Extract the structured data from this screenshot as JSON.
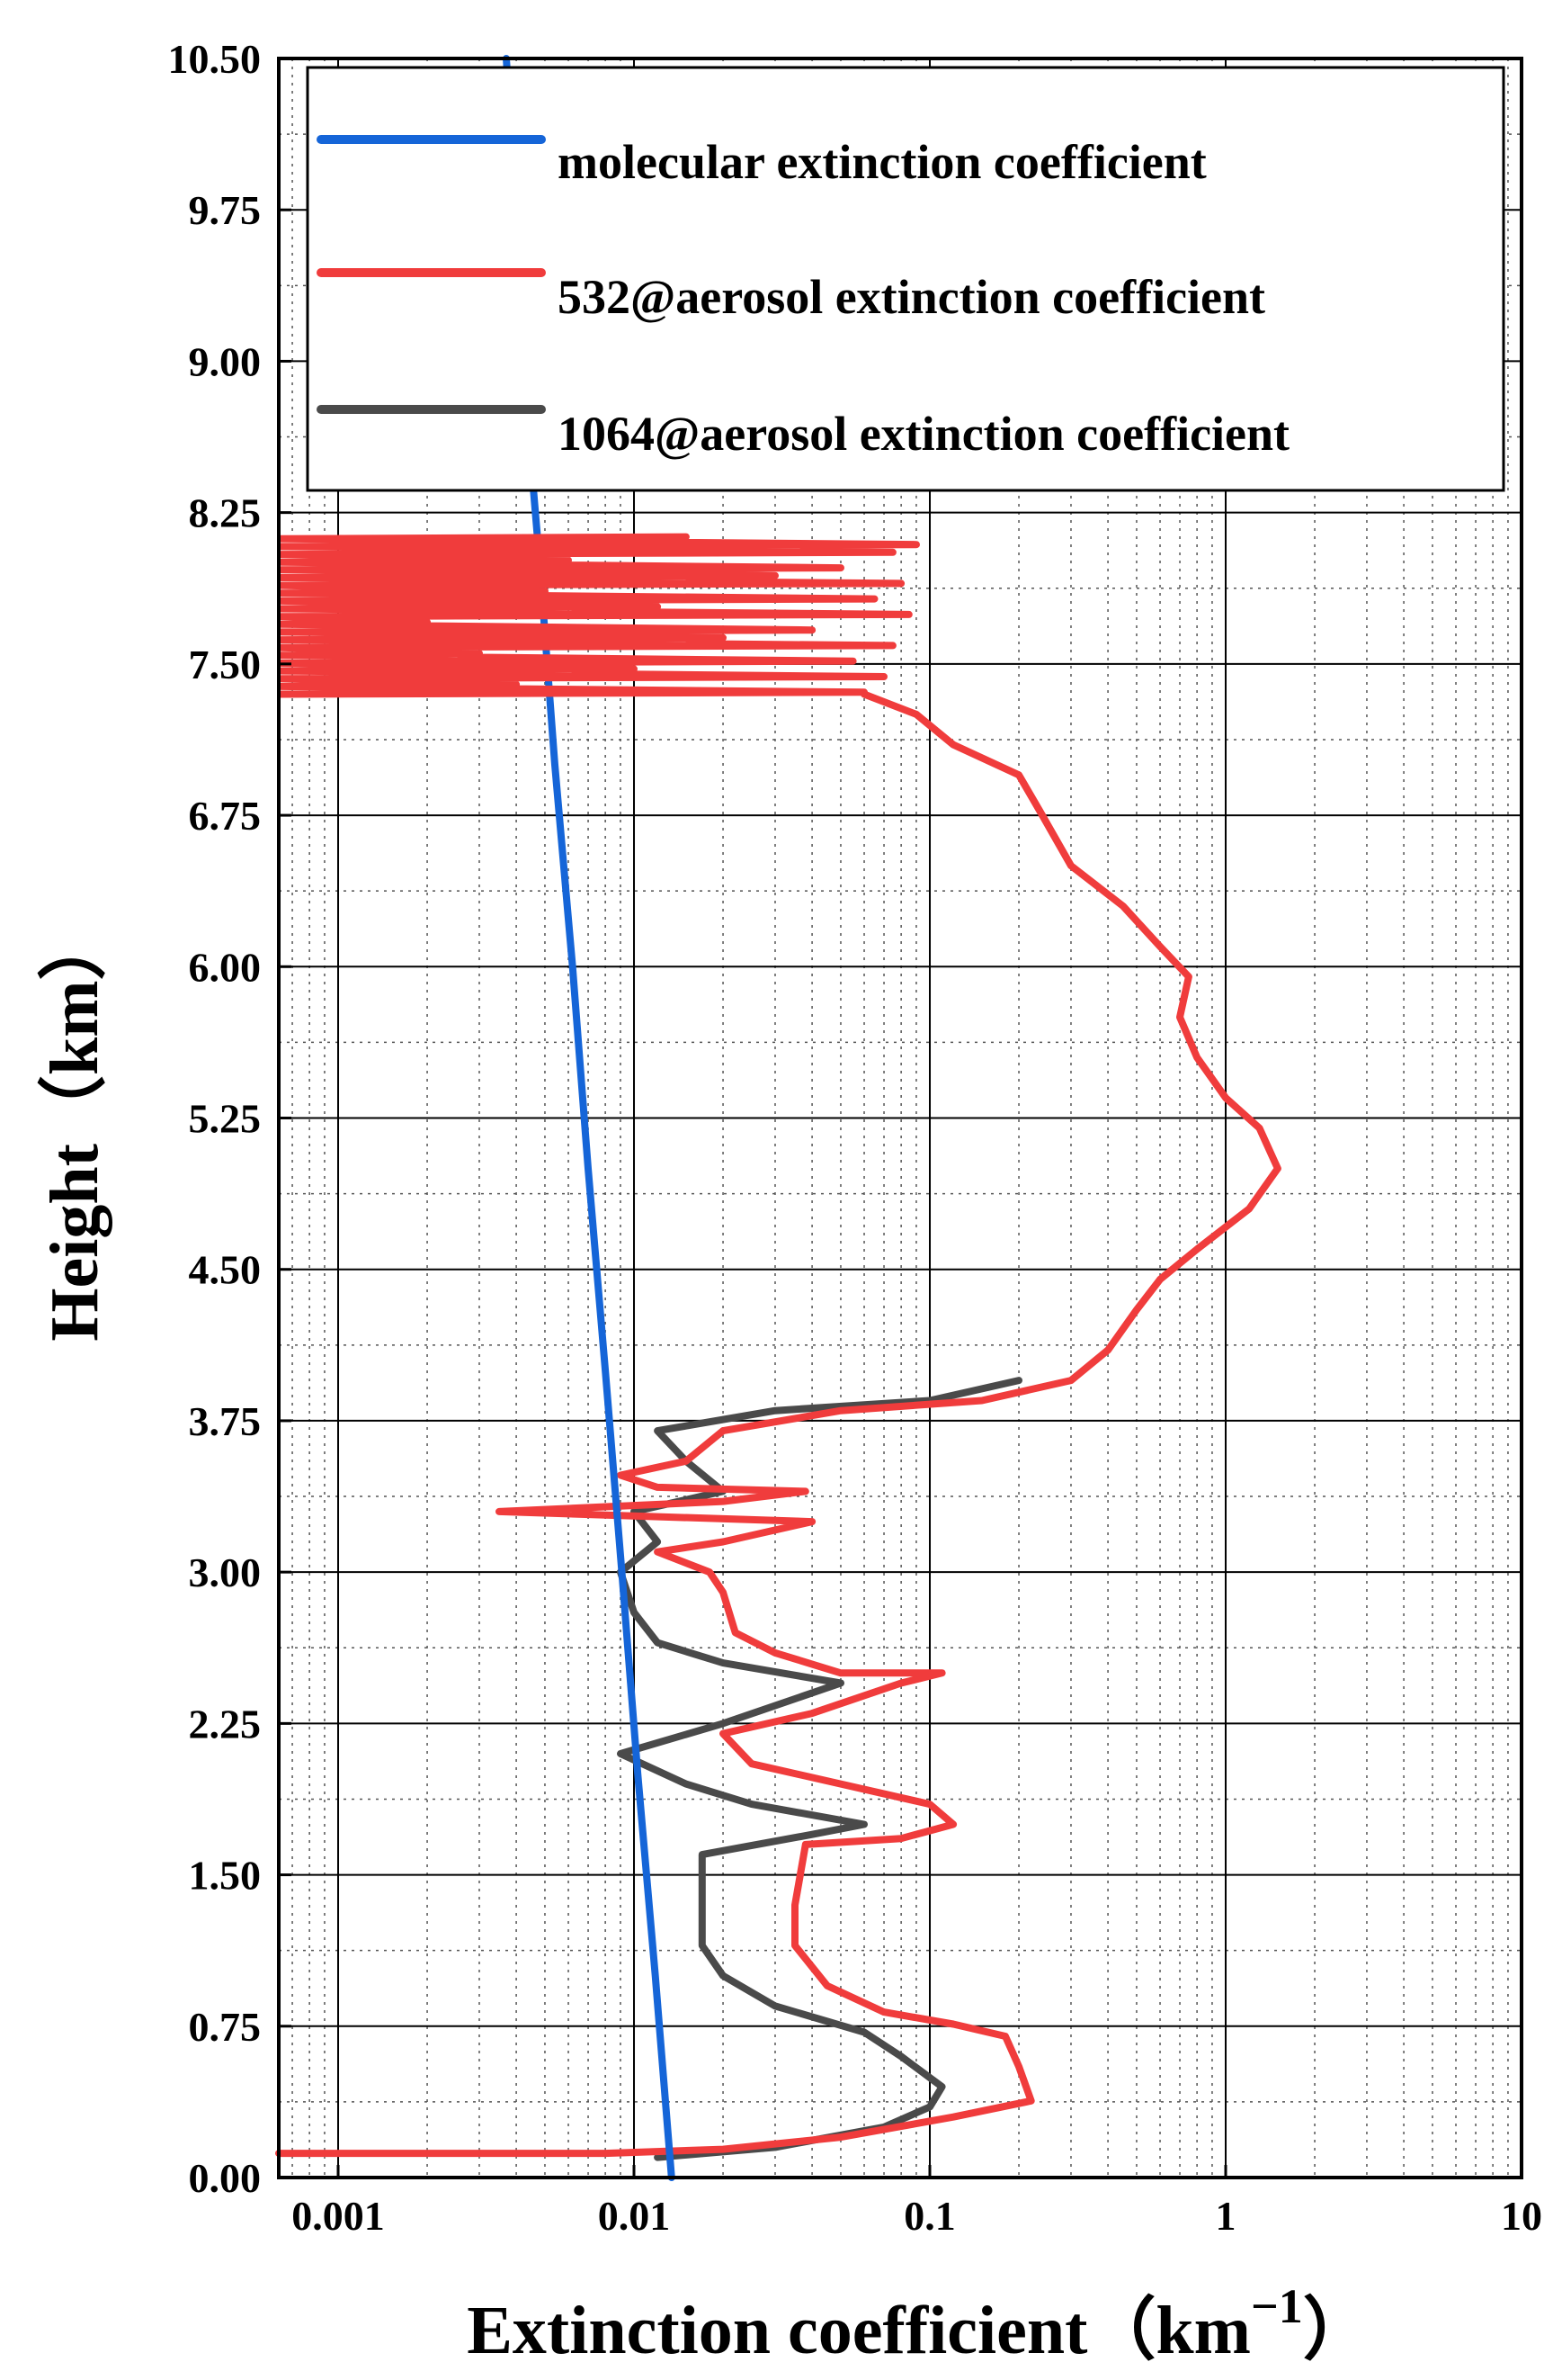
{
  "chart_data": {
    "type": "line",
    "title": "",
    "xlabel": "Extinction coefficient（km",
    "xlabel_superscript": "−1",
    "xlabel_suffix": "）",
    "ylabel": "Height（km）",
    "x_scale": "log",
    "xlim": [
      0.00063,
      10
    ],
    "ylim": [
      0,
      10.5
    ],
    "x_ticks": [
      {
        "value": 0.001,
        "label": "0.001"
      },
      {
        "value": 0.01,
        "label": "0.01"
      },
      {
        "value": 0.1,
        "label": "0.1"
      },
      {
        "value": 1,
        "label": "1"
      },
      {
        "value": 10,
        "label": "10"
      }
    ],
    "y_ticks": [
      {
        "value": 0,
        "label": "0.00"
      },
      {
        "value": 0.75,
        "label": "0.75"
      },
      {
        "value": 1.5,
        "label": "1.50"
      },
      {
        "value": 2.25,
        "label": "2.25"
      },
      {
        "value": 3.0,
        "label": "3.00"
      },
      {
        "value": 3.75,
        "label": "3.75"
      },
      {
        "value": 4.5,
        "label": "4.50"
      },
      {
        "value": 5.25,
        "label": "5.25"
      },
      {
        "value": 6.0,
        "label": "6.00"
      },
      {
        "value": 6.75,
        "label": "6.75"
      },
      {
        "value": 7.5,
        "label": "7.50"
      },
      {
        "value": 8.25,
        "label": "8.25"
      },
      {
        "value": 9.0,
        "label": "9.00"
      },
      {
        "value": 9.75,
        "label": "9.75"
      },
      {
        "value": 10.5,
        "label": "10.50"
      }
    ],
    "grid": true,
    "legend_position": "top",
    "series": [
      {
        "name": "molecular extinction coefficient",
        "color": "#1565d8",
        "points": [
          [
            0.0134,
            0.0
          ],
          [
            0.0118,
            1.0
          ],
          [
            0.0103,
            2.0
          ],
          [
            0.0091,
            3.0
          ],
          [
            0.008,
            4.0
          ],
          [
            0.007,
            5.0
          ],
          [
            0.0062,
            6.0
          ],
          [
            0.0054,
            7.0
          ],
          [
            0.0048,
            8.0
          ],
          [
            0.0042,
            9.0
          ],
          [
            0.0039,
            10.0
          ],
          [
            0.0037,
            10.5
          ]
        ]
      },
      {
        "name": "532@aerosol extinction coefficient",
        "color": "#f03c3c",
        "points": [
          [
            0.00063,
            0.12
          ],
          [
            0.003,
            0.12
          ],
          [
            0.008,
            0.12
          ],
          [
            0.02,
            0.14
          ],
          [
            0.05,
            0.2
          ],
          [
            0.12,
            0.3
          ],
          [
            0.22,
            0.38
          ],
          [
            0.2,
            0.55
          ],
          [
            0.18,
            0.7
          ],
          [
            0.12,
            0.76
          ],
          [
            0.07,
            0.82
          ],
          [
            0.045,
            0.95
          ],
          [
            0.035,
            1.15
          ],
          [
            0.035,
            1.35
          ],
          [
            0.038,
            1.65
          ],
          [
            0.08,
            1.68
          ],
          [
            0.12,
            1.75
          ],
          [
            0.1,
            1.85
          ],
          [
            0.05,
            1.95
          ],
          [
            0.025,
            2.05
          ],
          [
            0.02,
            2.2
          ],
          [
            0.04,
            2.3
          ],
          [
            0.08,
            2.45
          ],
          [
            0.11,
            2.5
          ],
          [
            0.05,
            2.5
          ],
          [
            0.03,
            2.6
          ],
          [
            0.022,
            2.7
          ],
          [
            0.02,
            2.9
          ],
          [
            0.018,
            3.0
          ],
          [
            0.012,
            3.1
          ],
          [
            0.02,
            3.15
          ],
          [
            0.04,
            3.25
          ],
          [
            0.0035,
            3.3
          ],
          [
            0.02,
            3.35
          ],
          [
            0.038,
            3.4
          ],
          [
            0.012,
            3.42
          ],
          [
            0.009,
            3.48
          ],
          [
            0.015,
            3.55
          ],
          [
            0.02,
            3.7
          ],
          [
            0.05,
            3.8
          ],
          [
            0.15,
            3.85
          ],
          [
            0.3,
            3.95
          ],
          [
            0.4,
            4.1
          ],
          [
            0.5,
            4.3
          ],
          [
            0.6,
            4.45
          ],
          [
            0.8,
            4.6
          ],
          [
            1.2,
            4.8
          ],
          [
            1.5,
            5.0
          ],
          [
            1.3,
            5.2
          ],
          [
            1.0,
            5.35
          ],
          [
            0.8,
            5.55
          ],
          [
            0.7,
            5.75
          ],
          [
            0.75,
            5.95
          ],
          [
            0.6,
            6.1
          ],
          [
            0.45,
            6.3
          ],
          [
            0.3,
            6.5
          ],
          [
            0.24,
            6.75
          ],
          [
            0.2,
            6.95
          ],
          [
            0.12,
            7.1
          ],
          [
            0.09,
            7.25
          ],
          [
            0.06,
            7.35
          ]
        ]
      },
      {
        "name": "1064@aerosol extinction coefficient",
        "color": "#4a4a4a",
        "points": [
          [
            0.012,
            0.1
          ],
          [
            0.03,
            0.15
          ],
          [
            0.07,
            0.25
          ],
          [
            0.1,
            0.35
          ],
          [
            0.11,
            0.45
          ],
          [
            0.08,
            0.6
          ],
          [
            0.06,
            0.72
          ],
          [
            0.03,
            0.85
          ],
          [
            0.02,
            1.0
          ],
          [
            0.017,
            1.15
          ],
          [
            0.017,
            1.35
          ],
          [
            0.017,
            1.6
          ],
          [
            0.04,
            1.7
          ],
          [
            0.06,
            1.75
          ],
          [
            0.025,
            1.85
          ],
          [
            0.015,
            1.95
          ],
          [
            0.009,
            2.1
          ],
          [
            0.02,
            2.25
          ],
          [
            0.05,
            2.45
          ],
          [
            0.02,
            2.55
          ],
          [
            0.012,
            2.65
          ],
          [
            0.01,
            2.8
          ],
          [
            0.009,
            3.0
          ],
          [
            0.012,
            3.15
          ],
          [
            0.01,
            3.3
          ],
          [
            0.02,
            3.4
          ],
          [
            0.015,
            3.55
          ],
          [
            0.012,
            3.7
          ],
          [
            0.03,
            3.8
          ],
          [
            0.1,
            3.85
          ],
          [
            0.2,
            3.95
          ]
        ]
      }
    ]
  }
}
